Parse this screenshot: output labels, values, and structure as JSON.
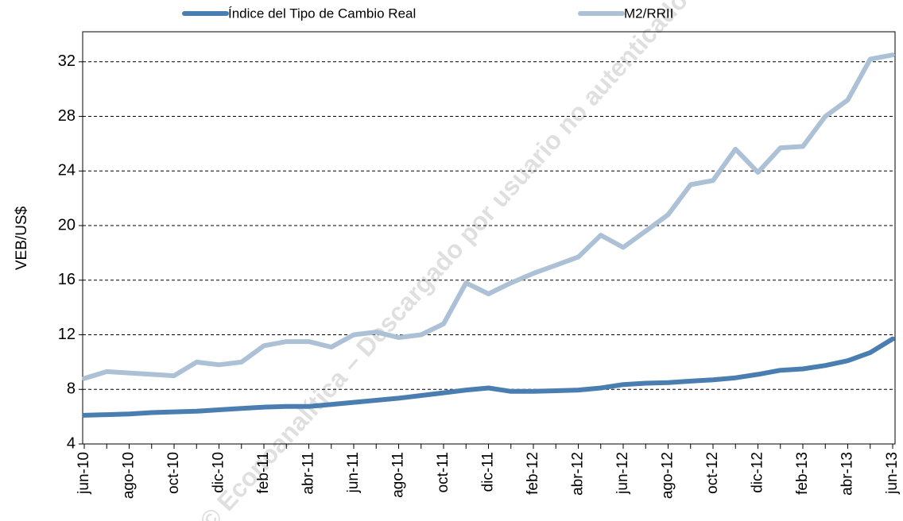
{
  "chart_data": {
    "type": "line",
    "y_label": "VEB/US$",
    "watermark": "© Econoanalítica – Descargado por usuario no autenticado",
    "categories": [
      "jun-10",
      null,
      "ago-10",
      null,
      "oct-10",
      null,
      "dic-10",
      null,
      "feb-11",
      null,
      "abr-11",
      null,
      "jun-11",
      null,
      "ago-11",
      null,
      "oct-11",
      null,
      "dic-11",
      null,
      "feb-12",
      null,
      "abr-12",
      null,
      "jun-12",
      null,
      "ago-12",
      null,
      "oct-12",
      null,
      "dic-12",
      null,
      "feb-13",
      null,
      "abr-13",
      null,
      "jun-13"
    ],
    "series": [
      {
        "name": "Índice del Tipo de Cambio Real",
        "color": "#4a7eb0",
        "values": [
          6.1,
          6.15,
          6.2,
          6.3,
          6.35,
          6.4,
          6.5,
          6.6,
          6.7,
          6.75,
          6.75,
          6.9,
          7.05,
          7.2,
          7.35,
          7.55,
          7.75,
          7.95,
          8.1,
          7.85,
          7.85,
          7.9,
          7.95,
          8.1,
          8.35,
          8.45,
          8.5,
          8.6,
          8.7,
          8.85,
          9.1,
          9.4,
          9.5,
          9.75,
          10.1,
          10.7,
          11.7
        ]
      },
      {
        "name": "M2/RRII",
        "color": "#adc1d6",
        "values": [
          8.8,
          9.3,
          9.2,
          9.1,
          9.0,
          10.0,
          9.8,
          10.0,
          11.2,
          11.5,
          11.5,
          11.1,
          12.0,
          12.2,
          11.8,
          12.0,
          12.8,
          15.8,
          15.0,
          15.8,
          16.5,
          17.1,
          17.7,
          19.3,
          18.4,
          19.6,
          20.8,
          23.0,
          23.3,
          25.6,
          23.9,
          25.7,
          25.8,
          28.0,
          29.2,
          32.2,
          32.5
        ]
      }
    ],
    "ylim": [
      4,
      34.2
    ],
    "yticks": [
      4,
      8,
      12,
      16,
      20,
      24,
      28,
      32
    ],
    "grid": true,
    "legend": "top"
  }
}
